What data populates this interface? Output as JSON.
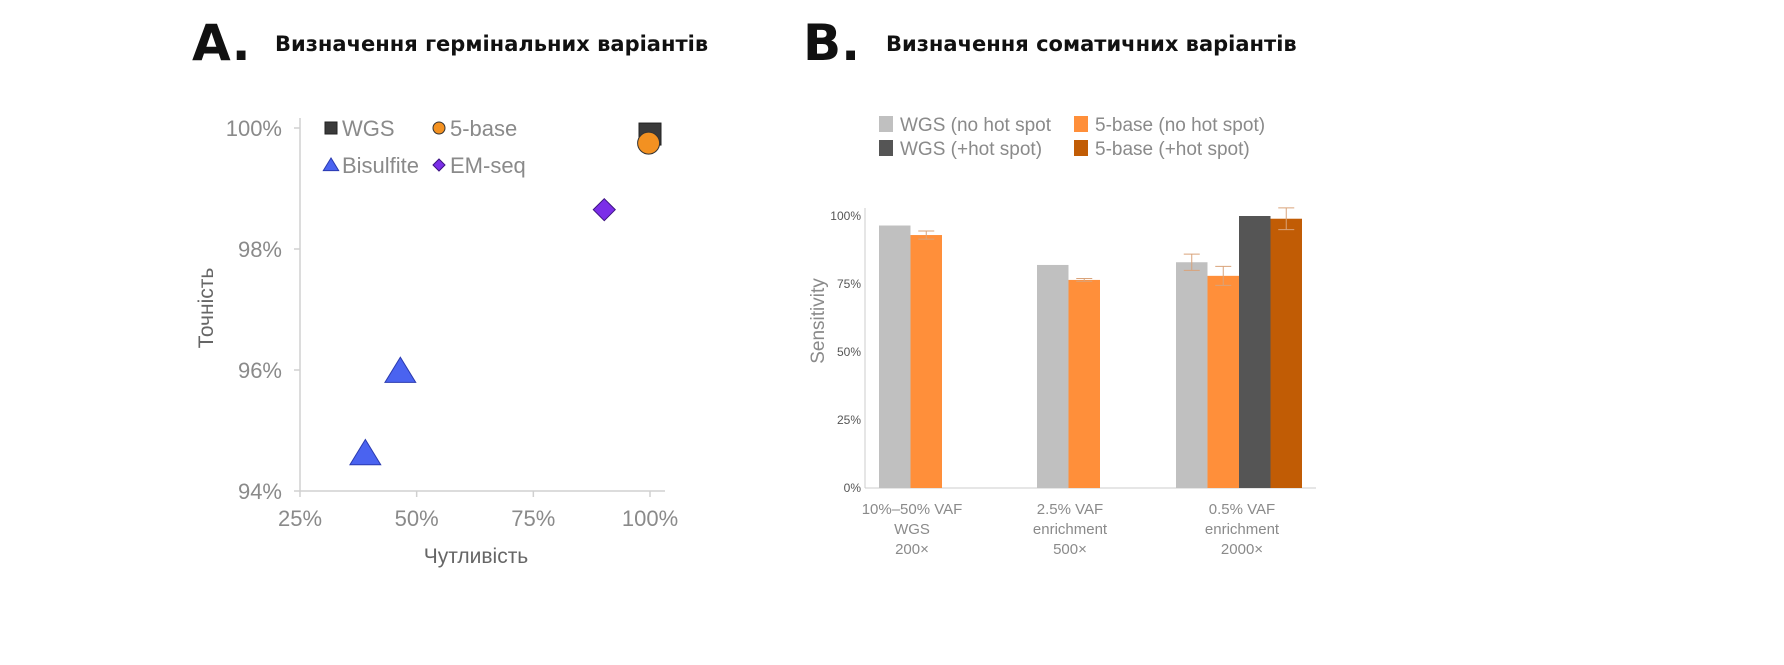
{
  "panel_a": {
    "letter": "A.",
    "title": "Визначення гермінальних варіантів"
  },
  "panel_b": {
    "letter": "B.",
    "title": "Визначення соматичних варіантів"
  },
  "colors": {
    "wgs": "#3a3a3a",
    "five_base": "#f39121",
    "bisulfite": "#4a63f0",
    "em_seq": "#7b2ee8",
    "wgs_no_hot": "#c0c0c0",
    "wgs_hot": "#555555",
    "five_no_hot": "#ff8f3a",
    "five_hot": "#c15c05",
    "axis": "#999999",
    "text_gray": "#8a8a8a"
  },
  "chart_data": [
    {
      "type": "scatter",
      "xlabel": "Чутливість",
      "ylabel": "Точність",
      "xlim": [
        25,
        100
      ],
      "ylim": [
        94,
        100
      ],
      "x_ticks": [
        25,
        50,
        75,
        100
      ],
      "x_tick_labels": [
        "25%",
        "50%",
        "75%",
        "100%"
      ],
      "y_ticks": [
        94,
        96,
        98,
        100
      ],
      "y_tick_labels": [
        "94%",
        "96%",
        "98%",
        "100%"
      ],
      "legend": [
        "WGS",
        "5-base",
        "Bisulfite",
        "EM-seq"
      ],
      "legend_position": "top-left",
      "series": [
        {
          "name": "WGS",
          "marker": "square",
          "color": "#3a3a3a",
          "points": [
            {
              "x": 100,
              "y": 99.9
            }
          ]
        },
        {
          "name": "5-base",
          "marker": "circle",
          "color": "#f39121",
          "points": [
            {
              "x": 99.7,
              "y": 99.75
            }
          ]
        },
        {
          "name": "Bisulfite",
          "marker": "triangle",
          "color": "#4a63f0",
          "points": [
            {
              "x": 46.5,
              "y": 95.98
            },
            {
              "x": 39,
              "y": 94.62
            }
          ]
        },
        {
          "name": "EM-seq",
          "marker": "diamond",
          "color": "#7b2ee8",
          "points": [
            {
              "x": 90.2,
              "y": 98.65
            }
          ]
        }
      ]
    },
    {
      "type": "bar",
      "ylabel": "Sensitivity",
      "ylim": [
        0,
        100
      ],
      "y_ticks": [
        0,
        25,
        50,
        75,
        100
      ],
      "y_tick_labels": [
        "0%",
        "25%",
        "50%",
        "75%",
        "100%"
      ],
      "categories": [
        [
          "10%–50% VAF",
          "WGS",
          "200×"
        ],
        [
          "2.5% VAF",
          "enrichment",
          "500×"
        ],
        [
          "0.5% VAF",
          "enrichment",
          "2000×"
        ]
      ],
      "legend": [
        {
          "label": "WGS (no hot spot",
          "color": "#c0c0c0"
        },
        {
          "label": "5-base (no hot spot)",
          "color": "#ff8f3a"
        },
        {
          "label": "WGS (+hot spot)",
          "color": "#555555"
        },
        {
          "label": "5-base (+hot spot)",
          "color": "#c15c05"
        }
      ],
      "legend_position": "top",
      "series": [
        {
          "name": "WGS (no hot spot",
          "color": "#c0c0c0",
          "values": [
            96.5,
            82,
            83
          ],
          "errors": [
            0,
            0,
            3
          ]
        },
        {
          "name": "5-base (no hot spot)",
          "color": "#ff8f3a",
          "values": [
            93,
            76.5,
            78
          ],
          "errors": [
            1.5,
            0.5,
            3.5
          ]
        },
        {
          "name": "WGS (+hot spot)",
          "color": "#555555",
          "values": [
            null,
            null,
            100
          ],
          "errors": [
            0,
            0,
            0
          ]
        },
        {
          "name": "5-base (+hot spot)",
          "color": "#c15c05",
          "values": [
            null,
            null,
            99
          ],
          "errors": [
            0,
            0,
            4
          ]
        }
      ]
    }
  ]
}
